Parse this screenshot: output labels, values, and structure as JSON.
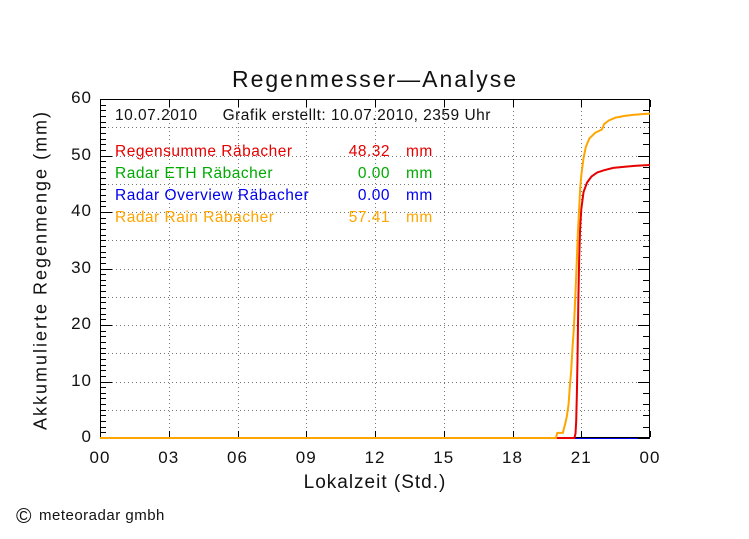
{
  "chart": {
    "title": "Regenmesser—Analyse",
    "header": {
      "date": "10.07.2010",
      "created": "Grafik erstellt: 10.07.2010, 2359 Uhr"
    },
    "xlabel": "Lokalzeit (Std.)",
    "ylabel": "Akkumulierte Regenmenge (mm)",
    "copyright_symbol": "©",
    "copyright": "meteoradar gmbh"
  },
  "legend": {
    "rows": [
      {
        "label": "Regensumme Räbacher",
        "value": "48.32",
        "unit": "mm",
        "color": "#e60000"
      },
      {
        "label": "Radar ETH Räbacher",
        "value": "0.00",
        "unit": "mm",
        "color": "#00aa00"
      },
      {
        "label": "Radar Overview Räbacher",
        "value": "0.00",
        "unit": "mm",
        "color": "#0000ee"
      },
      {
        "label": "Radar Rain Räbacher",
        "value": "57.41",
        "unit": "mm",
        "color": "#ffa500"
      }
    ]
  },
  "colors": {
    "axis": "#000000",
    "gridline": "#777777",
    "background": "#ffffff"
  },
  "chart_data": {
    "type": "line",
    "title": "Regenmesser—Analyse",
    "xlabel": "Lokalzeit (Std.)",
    "ylabel": "Akkumulierte Regenmenge (mm)",
    "xlim": [
      0,
      24
    ],
    "ylim": [
      0,
      60
    ],
    "xticks": {
      "values": [
        0,
        3,
        6,
        9,
        12,
        15,
        18,
        21,
        24
      ],
      "labels": [
        "00",
        "03",
        "06",
        "09",
        "12",
        "15",
        "18",
        "21",
        "00"
      ]
    },
    "yticks": {
      "values": [
        0,
        10,
        20,
        30,
        40,
        50,
        60
      ],
      "labels": [
        "0",
        "10",
        "20",
        "30",
        "40",
        "50",
        "60"
      ]
    },
    "grid": {
      "x_step": 3,
      "y_step": 5,
      "style": "dotted",
      "on": true
    },
    "legend_position": "top-left-inside",
    "series": [
      {
        "name": "Regensumme Räbacher",
        "color": "#e60000",
        "total_mm": 48.32,
        "points": [
          [
            0,
            0
          ],
          [
            20.7,
            0
          ],
          [
            20.75,
            0.8
          ],
          [
            20.78,
            3
          ],
          [
            20.81,
            8
          ],
          [
            20.84,
            15
          ],
          [
            20.87,
            24
          ],
          [
            20.91,
            32
          ],
          [
            20.95,
            37
          ],
          [
            21.0,
            40.5
          ],
          [
            21.1,
            43.5
          ],
          [
            21.25,
            45.2
          ],
          [
            21.45,
            46.3
          ],
          [
            21.7,
            47.0
          ],
          [
            22.0,
            47.4
          ],
          [
            22.4,
            47.8
          ],
          [
            22.9,
            48.0
          ],
          [
            23.4,
            48.2
          ],
          [
            24,
            48.32
          ]
        ]
      },
      {
        "name": "Radar ETH Räbacher",
        "color": "#00aa00",
        "total_mm": 0,
        "points": [
          [
            0,
            0
          ],
          [
            24,
            0
          ]
        ]
      },
      {
        "name": "Radar Overview Räbacher",
        "color": "#0000ee",
        "total_mm": 0,
        "points": [
          [
            0,
            0
          ],
          [
            24,
            0
          ]
        ]
      },
      {
        "name": "Radar Rain Räbacher",
        "color": "#ffa500",
        "total_mm": 57.41,
        "points": [
          [
            0,
            0
          ],
          [
            19.9,
            0
          ],
          [
            19.95,
            0.9
          ],
          [
            20.2,
            0.9
          ],
          [
            20.25,
            1.8
          ],
          [
            20.3,
            2.5
          ],
          [
            20.38,
            4
          ],
          [
            20.45,
            6
          ],
          [
            20.5,
            9
          ],
          [
            20.56,
            12
          ],
          [
            20.62,
            16
          ],
          [
            20.67,
            19
          ],
          [
            20.72,
            23
          ],
          [
            20.76,
            27
          ],
          [
            20.8,
            31
          ],
          [
            20.85,
            36
          ],
          [
            20.9,
            40
          ],
          [
            20.95,
            44
          ],
          [
            21.0,
            46.5
          ],
          [
            21.1,
            49.5
          ],
          [
            21.2,
            51.5
          ],
          [
            21.35,
            53
          ],
          [
            21.6,
            54
          ],
          [
            21.9,
            54.6
          ],
          [
            22.0,
            55.6
          ],
          [
            22.2,
            56.2
          ],
          [
            22.5,
            56.7
          ],
          [
            22.9,
            57.0
          ],
          [
            23.3,
            57.2
          ],
          [
            23.7,
            57.35
          ],
          [
            24,
            57.41
          ]
        ]
      }
    ]
  }
}
